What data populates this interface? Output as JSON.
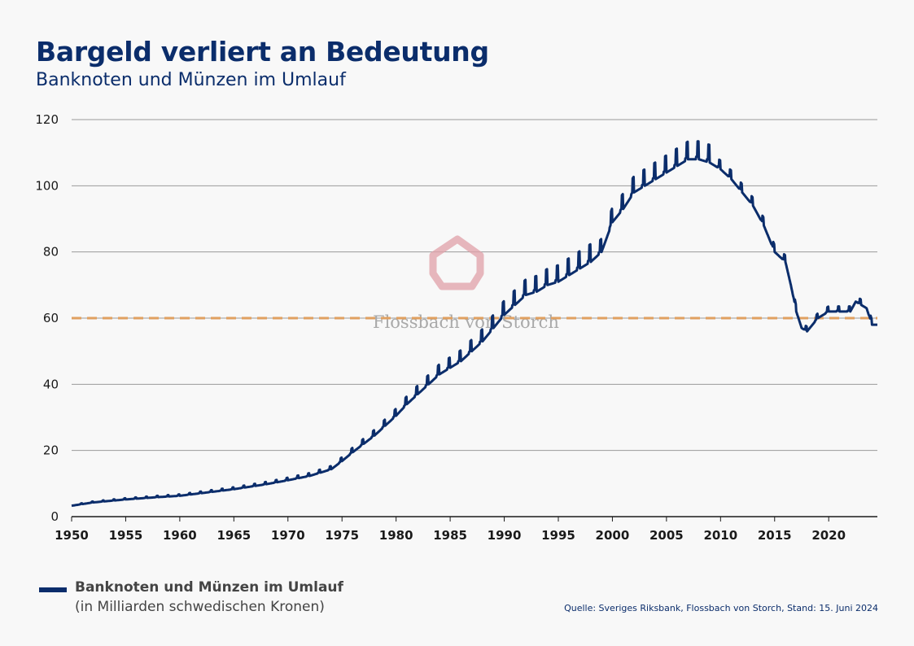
{
  "title": "Bargeld verliert an Bedeutung",
  "subtitle": "Banknoten und Münzen im Umlauf",
  "legend": {
    "label": "Banknoten und Münzen im Umlauf",
    "sublabel": "(in Milliarden schwedischen Kronen)"
  },
  "source": "Quelle: Sveriges Riksbank, Flossbach von Storch, Stand: 15. Juni 2024",
  "watermark": "Flossbach von Storch",
  "colors": {
    "line": "#0b2d6b",
    "reference": "#e0a060",
    "grid": "#9a9a9a",
    "watermark_logo": "#e0a0a8"
  },
  "chart_data": {
    "type": "line",
    "title": "Bargeld verliert an Bedeutung",
    "subtitle": "Banknoten und Münzen im Umlauf",
    "xlabel": "",
    "ylabel": "",
    "xlim": [
      1950,
      2024.5
    ],
    "ylim": [
      0,
      120
    ],
    "x_ticks": [
      1950,
      1955,
      1960,
      1965,
      1970,
      1975,
      1980,
      1985,
      1990,
      1995,
      2000,
      2005,
      2010,
      2015,
      2020
    ],
    "y_ticks": [
      0,
      20,
      40,
      60,
      80,
      100,
      120
    ],
    "grid": "horizontal",
    "reference_line": {
      "y": 60,
      "style": "dashed"
    },
    "series": [
      {
        "name": "Banknoten und Münzen im Umlauf",
        "x": [
          1950,
          1952,
          1955,
          1958,
          1960,
          1962,
          1965,
          1968,
          1970,
          1972,
          1974,
          1975,
          1976,
          1977,
          1978,
          1979,
          1980,
          1981,
          1982,
          1983,
          1984,
          1985,
          1986,
          1987,
          1988,
          1989,
          1990,
          1991,
          1992,
          1993,
          1994,
          1995,
          1996,
          1997,
          1998,
          1999,
          2000,
          2001,
          2002,
          2003,
          2004,
          2005,
          2006,
          2007,
          2008,
          2009,
          2010,
          2011,
          2012,
          2013,
          2014,
          2015,
          2016,
          2016.5,
          2017,
          2017.5,
          2018,
          2018.5,
          2019,
          2020,
          2021,
          2022,
          2022.5,
          2023,
          2023.5,
          2024,
          2024.4
        ],
        "values": [
          3.3,
          4.3,
          5.2,
          5.9,
          6.3,
          7.1,
          8.3,
          9.8,
          11,
          12.3,
          14.3,
          16.8,
          19.5,
          22,
          24.5,
          27.5,
          30.5,
          34,
          37,
          40,
          43,
          45,
          47,
          50,
          53,
          57,
          61,
          64,
          67,
          68,
          70,
          71,
          73,
          75,
          77,
          80,
          89,
          93,
          98,
          100,
          102,
          104,
          106,
          108,
          108,
          107,
          105,
          102,
          98,
          94,
          88,
          80,
          77,
          70,
          62,
          57,
          56,
          58,
          60,
          62,
          62,
          62,
          65,
          64,
          63,
          58,
          58
        ]
      }
    ],
    "legend_position": "bottom-left"
  }
}
